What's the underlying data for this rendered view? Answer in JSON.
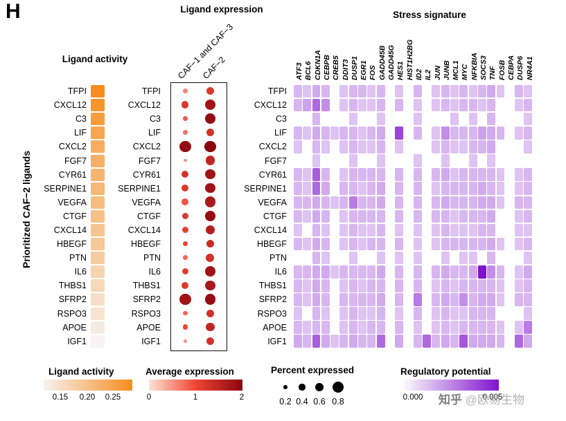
{
  "panel": {
    "label": "H",
    "y_axis_label": "Prioritized CAF−2 ligands"
  },
  "sections": {
    "activity": {
      "title": "Ligand activity"
    },
    "expression": {
      "title": "Ligand expression"
    },
    "stress": {
      "title": "Stress signature"
    }
  },
  "legends": {
    "activity": {
      "title": "Ligand activity",
      "ticks": [
        "0.15",
        "0.20",
        "0.25"
      ]
    },
    "expression": {
      "title": "Average expression",
      "ticks": [
        "0",
        "1",
        "2"
      ]
    },
    "percent": {
      "title": "Percent expressed",
      "ticks": [
        "0.2",
        "0.4",
        "0.6",
        "0.8"
      ]
    },
    "regulatory": {
      "title": "Regulatory potential",
      "ticks": [
        "0.000",
        "0.005"
      ]
    }
  },
  "watermark": {
    "brand": "知乎",
    "handle": " @欧易生物"
  },
  "colors": {
    "activity_scale": [
      "#f6f3f0",
      "#F78D1E"
    ],
    "expression_scale": [
      "#fde3d5",
      "#ef4533",
      "#8c0610"
    ],
    "regulatory_scale": [
      "#ffffff",
      "#8012CE"
    ],
    "legend_dot": "#000000"
  },
  "chart_data": [
    {
      "type": "heatmap",
      "title": "Ligand activity",
      "rows": [
        "TFPI",
        "CXCL12",
        "C3",
        "LIF",
        "CXCL2",
        "FGF7",
        "CYR61",
        "SERPINE1",
        "VEGFA",
        "CTGF",
        "CXCL14",
        "HBEGF",
        "PTN",
        "IL6",
        "THBS1",
        "SFRP2",
        "RSPO3",
        "APOE",
        "IGF1"
      ],
      "values": [
        0.26,
        0.25,
        0.24,
        0.23,
        0.22,
        0.215,
        0.21,
        0.205,
        0.2,
        0.195,
        0.19,
        0.185,
        0.18,
        0.17,
        0.165,
        0.155,
        0.15,
        0.14,
        0.13
      ],
      "scale": {
        "domain": [
          0.13,
          0.26
        ],
        "legend_ticks": [
          0.15,
          0.2,
          0.25
        ]
      }
    },
    {
      "type": "scatter",
      "title": "Ligand expression",
      "rows": [
        "TFPI",
        "CXCL12",
        "C3",
        "LIF",
        "CXCL2",
        "FGF7",
        "CYR61",
        "SERPINE1",
        "VEGFA",
        "CTGF",
        "CXCL14",
        "HBEGF",
        "PTN",
        "IL6",
        "THBS1",
        "SFRP2",
        "RSPO3",
        "APOE",
        "IGF1"
      ],
      "series": [
        {
          "name": "CAF−1 and CAF−3",
          "percent": [
            0.25,
            0.45,
            0.3,
            0.25,
            0.8,
            0.15,
            0.45,
            0.45,
            0.45,
            0.4,
            0.4,
            0.3,
            0.25,
            0.4,
            0.45,
            0.8,
            0.25,
            0.3,
            0.15
          ],
          "expression": [
            0.6,
            1.2,
            0.9,
            0.7,
            1.9,
            0.5,
            1.3,
            1.2,
            0.9,
            1.2,
            1.1,
            1.0,
            0.8,
            1.1,
            1.2,
            1.8,
            0.8,
            1.0,
            0.5
          ]
        },
        {
          "name": "CAF−2",
          "percent": [
            0.5,
            0.75,
            0.7,
            0.5,
            0.8,
            0.65,
            0.7,
            0.7,
            0.75,
            0.7,
            0.65,
            0.5,
            0.55,
            0.7,
            0.7,
            0.75,
            0.5,
            0.6,
            0.5
          ],
          "expression": [
            1.2,
            1.8,
            1.9,
            1.3,
            2.0,
            1.5,
            1.8,
            1.8,
            1.7,
            1.9,
            1.6,
            1.4,
            1.3,
            1.8,
            1.7,
            1.9,
            1.3,
            1.5,
            1.3
          ]
        }
      ],
      "size_legend": {
        "title": "Percent expressed",
        "values": [
          0.2,
          0.4,
          0.6,
          0.8
        ]
      },
      "color_legend": {
        "title": "Average expression",
        "domain": [
          0,
          2
        ]
      }
    },
    {
      "type": "heatmap",
      "title": "Stress signature",
      "rows": [
        "TFPI",
        "CXCL12",
        "C3",
        "LIF",
        "CXCL2",
        "FGF7",
        "CYR61",
        "SERPINE1",
        "VEGFA",
        "CTGF",
        "CXCL14",
        "HBEGF",
        "PTN",
        "IL6",
        "THBS1",
        "SFRP2",
        "RSPO3",
        "APOE",
        "IGF1"
      ],
      "columns": [
        "ATF3",
        "BCL6",
        "CDKN1A",
        "CEBPB",
        "CREB5",
        "DDIT3",
        "DUSP1",
        "EGR1",
        "FOS",
        "GADD45B",
        "GADD45G",
        "HES1",
        "HIST1H2BG",
        "ID2",
        "IL2",
        "JUN",
        "JUNB",
        "MCL1",
        "MYC",
        "NFKBIA",
        "SOCS3",
        "TNF",
        "FOSB",
        "CEBPA",
        "DUSP6",
        "NR4A1"
      ],
      "scale": {
        "unit": 0.0001,
        "domain": [
          0,
          0.006
        ],
        "legend": "Regulatory potential",
        "legend_ticks": [
          0.0,
          0.005
        ]
      },
      "values": [
        [
          15,
          12,
          18,
          15,
          0,
          12,
          15,
          15,
          12,
          15,
          0,
          12,
          0,
          15,
          0,
          12,
          15,
          12,
          15,
          12,
          15,
          18,
          12,
          0,
          15,
          12
        ],
        [
          15,
          20,
          35,
          25,
          0,
          12,
          15,
          12,
          12,
          15,
          0,
          15,
          0,
          12,
          0,
          12,
          15,
          12,
          15,
          15,
          12,
          15,
          0,
          0,
          12,
          15
        ],
        [
          0,
          0,
          15,
          0,
          0,
          0,
          12,
          0,
          0,
          12,
          0,
          0,
          0,
          12,
          0,
          0,
          0,
          12,
          0,
          12,
          0,
          15,
          0,
          0,
          0,
          12
        ],
        [
          15,
          12,
          18,
          15,
          12,
          15,
          15,
          12,
          15,
          18,
          0,
          45,
          0,
          15,
          0,
          12,
          25,
          15,
          15,
          15,
          20,
          18,
          15,
          0,
          12,
          15
        ],
        [
          12,
          0,
          15,
          12,
          0,
          12,
          15,
          12,
          12,
          15,
          0,
          12,
          0,
          0,
          0,
          12,
          15,
          12,
          12,
          15,
          15,
          18,
          0,
          0,
          0,
          12
        ],
        [
          0,
          0,
          12,
          0,
          0,
          0,
          12,
          0,
          0,
          12,
          0,
          0,
          0,
          12,
          0,
          0,
          12,
          0,
          0,
          12,
          0,
          12,
          0,
          0,
          0,
          0
        ],
        [
          15,
          12,
          38,
          15,
          0,
          12,
          15,
          15,
          15,
          15,
          0,
          15,
          0,
          15,
          0,
          15,
          18,
          12,
          15,
          15,
          15,
          15,
          12,
          0,
          12,
          15
        ],
        [
          15,
          12,
          35,
          18,
          0,
          15,
          15,
          12,
          15,
          18,
          0,
          15,
          0,
          15,
          0,
          12,
          15,
          15,
          15,
          15,
          18,
          15,
          12,
          0,
          12,
          15
        ],
        [
          15,
          15,
          18,
          15,
          12,
          15,
          30,
          15,
          15,
          18,
          0,
          15,
          0,
          15,
          0,
          15,
          18,
          15,
          15,
          15,
          18,
          18,
          12,
          0,
          15,
          15
        ],
        [
          15,
          12,
          18,
          15,
          0,
          12,
          15,
          15,
          15,
          15,
          0,
          15,
          0,
          15,
          0,
          15,
          15,
          12,
          15,
          15,
          15,
          18,
          0,
          0,
          12,
          15
        ],
        [
          12,
          0,
          15,
          12,
          0,
          12,
          15,
          12,
          12,
          15,
          0,
          12,
          0,
          12,
          0,
          12,
          15,
          12,
          12,
          12,
          15,
          15,
          0,
          0,
          12,
          12
        ],
        [
          15,
          12,
          18,
          15,
          0,
          12,
          15,
          12,
          15,
          15,
          0,
          15,
          0,
          12,
          0,
          12,
          15,
          15,
          15,
          15,
          15,
          18,
          12,
          0,
          12,
          15
        ],
        [
          0,
          0,
          15,
          12,
          0,
          0,
          12,
          0,
          0,
          12,
          0,
          12,
          0,
          12,
          0,
          0,
          12,
          0,
          12,
          12,
          0,
          15,
          0,
          0,
          0,
          12
        ],
        [
          15,
          15,
          18,
          18,
          12,
          15,
          15,
          15,
          15,
          18,
          0,
          15,
          0,
          15,
          0,
          15,
          18,
          15,
          15,
          18,
          60,
          25,
          15,
          0,
          12,
          18
        ],
        [
          15,
          12,
          18,
          15,
          0,
          12,
          15,
          12,
          15,
          15,
          0,
          15,
          0,
          15,
          0,
          12,
          15,
          12,
          15,
          15,
          15,
          15,
          12,
          0,
          12,
          15
        ],
        [
          15,
          12,
          18,
          15,
          0,
          15,
          15,
          15,
          15,
          18,
          0,
          15,
          0,
          30,
          0,
          15,
          18,
          15,
          25,
          15,
          18,
          18,
          12,
          0,
          15,
          15
        ],
        [
          12,
          0,
          15,
          12,
          0,
          12,
          15,
          12,
          12,
          15,
          0,
          12,
          0,
          15,
          0,
          12,
          15,
          12,
          12,
          15,
          15,
          15,
          0,
          0,
          0,
          12
        ],
        [
          15,
          12,
          15,
          15,
          0,
          12,
          15,
          12,
          15,
          15,
          0,
          15,
          0,
          12,
          0,
          12,
          15,
          12,
          15,
          15,
          15,
          15,
          12,
          0,
          12,
          30
        ],
        [
          18,
          15,
          38,
          18,
          12,
          15,
          18,
          15,
          15,
          35,
          0,
          18,
          0,
          15,
          35,
          15,
          18,
          15,
          40,
          18,
          18,
          18,
          15,
          0,
          35,
          18
        ]
      ]
    }
  ]
}
